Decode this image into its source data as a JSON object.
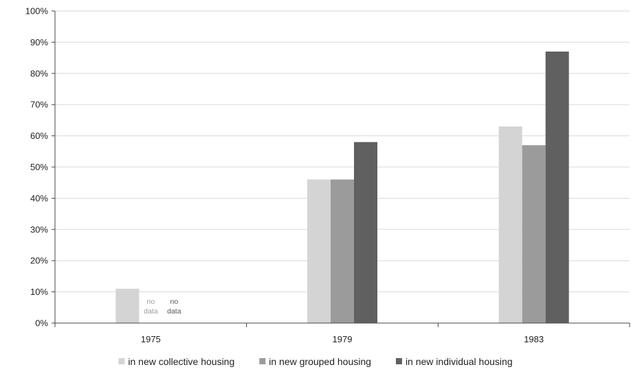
{
  "chart_data": {
    "type": "bar",
    "title": "",
    "xlabel": "",
    "ylabel": "",
    "categories": [
      "1975",
      "1979",
      "1983"
    ],
    "ylim": [
      0,
      100
    ],
    "yticks": [
      "0%",
      "10%",
      "20%",
      "30%",
      "40%",
      "50%",
      "60%",
      "70%",
      "80%",
      "90%",
      "100%"
    ],
    "grid": true,
    "legend_position": "bottom",
    "series": [
      {
        "name": "in new collective housing",
        "color": "#d4d4d4",
        "values": [
          11,
          46,
          63
        ],
        "notes": [
          "",
          "",
          ""
        ]
      },
      {
        "name": "in new grouped housing",
        "color": "#9b9b9b",
        "values": [
          null,
          46,
          57
        ],
        "notes": [
          "no data",
          "",
          ""
        ]
      },
      {
        "name": "in new individual housing",
        "color": "#606060",
        "values": [
          null,
          58,
          87
        ],
        "notes": [
          "no data",
          "",
          ""
        ]
      }
    ]
  }
}
